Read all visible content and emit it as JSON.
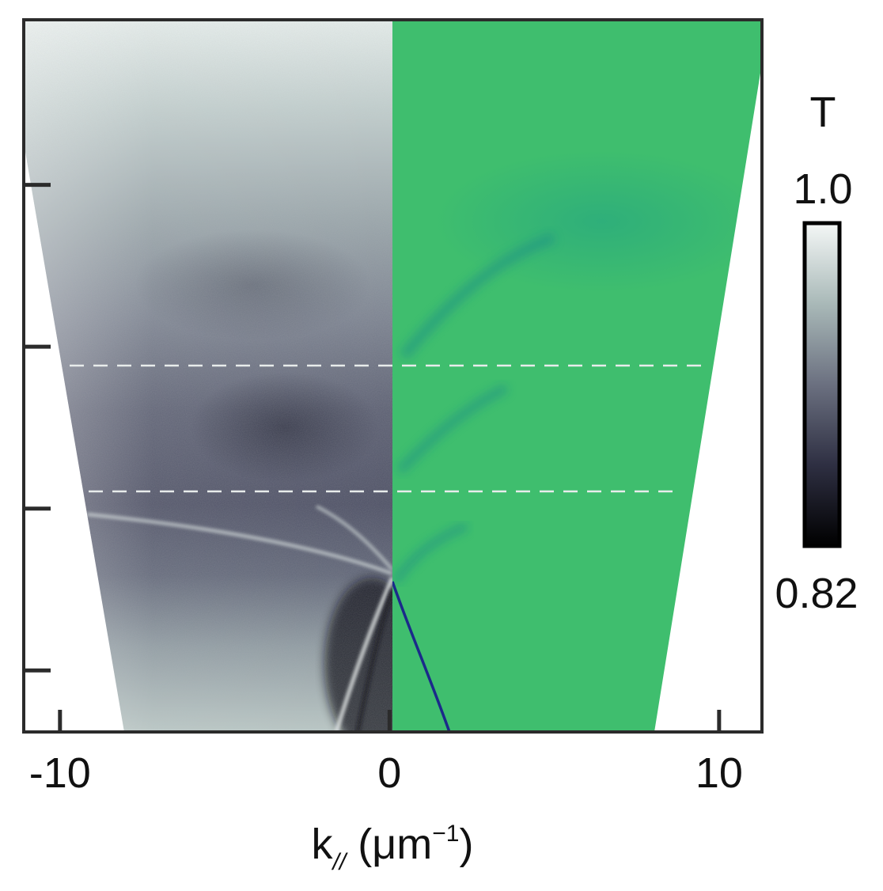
{
  "chart_data": {
    "type": "heatmap",
    "xlabel_base": "k",
    "xlabel_sub": "//",
    "xlabel_unit_pre": " (μm",
    "xlabel_unit_sup": "−1",
    "xlabel_unit_post": ")",
    "ylabel": "",
    "xlim": [
      -11.1,
      11.3
    ],
    "x_ticks": [
      -10,
      0,
      10
    ],
    "x_tick_labels": [
      "-10",
      "0",
      "10"
    ],
    "y_tick_count": 4,
    "y_tick_labels": [],
    "left_half": "experimental transmission map (grayscale)",
    "right_half": "simulated map (green)",
    "dashed_lines_count": 2,
    "colorbar": {
      "title": "T",
      "max_label": "1.0",
      "min_label": "0.82",
      "range": [
        0.82,
        1.0
      ],
      "colormap": [
        "#000000",
        "#2e2f42",
        "#6b7080",
        "#a9b9b8",
        "#f4f7f6"
      ]
    },
    "colors": {
      "sim_green": "#3fbe6e",
      "sim_teal": "#2aa57e",
      "sim_band": "#1b2a8a",
      "frame": "#2b2b2b"
    }
  }
}
